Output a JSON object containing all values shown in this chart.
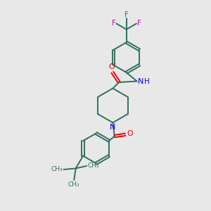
{
  "background_color": "#e8e8e8",
  "bond_color": "#2d7060",
  "N_color": "#0000ee",
  "O_color": "#ee0000",
  "F_color": "#cc00cc",
  "figsize": [
    3.0,
    3.0
  ],
  "dpi": 100,
  "xlim": [
    0,
    10
  ],
  "ylim": [
    0,
    10
  ]
}
